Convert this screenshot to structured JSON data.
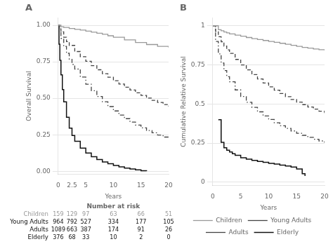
{
  "chart_data": [
    {
      "type": "step",
      "title": "A",
      "xlabel": "Years",
      "ylabel": "Overall Survival",
      "xlim": [
        0,
        20
      ],
      "ylim": [
        -0.02,
        1.05
      ],
      "xticks": [
        0,
        2.5,
        5,
        10,
        15,
        20
      ],
      "yticks": [
        {
          "value": 0,
          "label": "0.00"
        },
        0.25,
        {
          "value": 0.5,
          "label": "0.50"
        },
        0.75,
        {
          "value": 1,
          "label": "1.00"
        }
      ],
      "grid": "y",
      "series": [
        {
          "name": "Children",
          "color": "#999999",
          "line_style": "solid",
          "x": [
            0,
            0.5,
            1,
            2,
            3,
            4,
            5,
            6,
            7,
            8,
            9,
            10,
            12,
            14,
            16,
            18,
            20
          ],
          "values": [
            1.0,
            0.99,
            0.985,
            0.978,
            0.972,
            0.967,
            0.96,
            0.953,
            0.945,
            0.938,
            0.928,
            0.918,
            0.9,
            0.882,
            0.868,
            0.855,
            0.848
          ]
        },
        {
          "name": "Young Adults",
          "color": "#444444",
          "line_style": "dashed",
          "x": [
            0,
            0.25,
            0.5,
            1,
            1.5,
            2,
            3,
            4,
            5,
            6,
            7,
            8,
            9,
            10,
            11,
            12,
            13,
            14,
            15,
            16,
            17,
            18,
            19,
            20
          ],
          "values": [
            1.0,
            0.975,
            0.955,
            0.918,
            0.888,
            0.862,
            0.82,
            0.785,
            0.753,
            0.723,
            0.695,
            0.668,
            0.644,
            0.62,
            0.597,
            0.576,
            0.556,
            0.537,
            0.519,
            0.501,
            0.486,
            0.471,
            0.457,
            0.444
          ]
        },
        {
          "name": "Adults",
          "color": "#444444",
          "line_style": "dashdot",
          "x": [
            0,
            0.2,
            0.5,
            1,
            1.5,
            2,
            2.5,
            3,
            4,
            5,
            6,
            7,
            8,
            9,
            10,
            11,
            12,
            13,
            14,
            15,
            16,
            17,
            18,
            19,
            20
          ],
          "values": [
            1.0,
            0.96,
            0.91,
            0.855,
            0.808,
            0.767,
            0.731,
            0.7,
            0.645,
            0.596,
            0.552,
            0.512,
            0.476,
            0.443,
            0.413,
            0.385,
            0.36,
            0.337,
            0.316,
            0.297,
            0.279,
            0.263,
            0.248,
            0.234,
            0.221
          ]
        },
        {
          "name": "Elderly",
          "color": "#111111",
          "line_style": "solid",
          "x": [
            0,
            0.15,
            0.3,
            0.5,
            0.75,
            1.0,
            1.5,
            2,
            2.5,
            3,
            4,
            5,
            6,
            7,
            8,
            9,
            10,
            11,
            12,
            13,
            14,
            15,
            16
          ],
          "values": [
            1.0,
            0.87,
            0.76,
            0.66,
            0.56,
            0.475,
            0.37,
            0.295,
            0.245,
            0.205,
            0.158,
            0.125,
            0.1,
            0.08,
            0.064,
            0.051,
            0.04,
            0.03,
            0.022,
            0.015,
            0.009,
            0.004,
            0.001
          ]
        }
      ],
      "risk_table": {
        "title": "Number at risk",
        "x": [
          0,
          2.5,
          5,
          10,
          15,
          20
        ],
        "rows": [
          {
            "name": "Children",
            "color": "#999999",
            "values": [
              159,
              129,
              97,
              63,
              66,
              51
            ]
          },
          {
            "name": "Young Adults",
            "color": "#111111",
            "values": [
              964,
              792,
              527,
              334,
              177,
              105
            ]
          },
          {
            "name": "Adults",
            "color": "#111111",
            "values": [
              1089,
              663,
              387,
              174,
              91,
              26
            ]
          },
          {
            "name": "Elderly",
            "color": "#111111",
            "values": [
              376,
              68,
              33,
              10,
              2,
              0
            ]
          }
        ]
      }
    },
    {
      "type": "step",
      "title": "B",
      "xlabel": "Years",
      "ylabel": "Cumulative Relative Survival",
      "xlim": [
        0,
        20
      ],
      "ylim": [
        -0.02,
        1.05
      ],
      "xticks": [
        0,
        5,
        10,
        15,
        20
      ],
      "yticks": [
        0,
        0.25,
        0.5,
        0.75,
        1
      ],
      "grid": "y",
      "legend": "bottom",
      "series": [
        {
          "name": "Children",
          "color": "#999999",
          "line_style": "solid",
          "x": [
            0,
            1,
            1.5,
            2,
            2.5,
            3,
            4,
            5,
            6,
            7,
            8,
            9,
            10,
            11,
            12,
            13,
            14,
            15,
            16,
            17,
            18,
            19,
            20
          ],
          "values": [
            1.0,
            0.975,
            0.968,
            0.96,
            0.955,
            0.948,
            0.94,
            0.933,
            0.925,
            0.918,
            0.912,
            0.906,
            0.9,
            0.894,
            0.888,
            0.882,
            0.875,
            0.868,
            0.862,
            0.857,
            0.852,
            0.847,
            0.843
          ]
        },
        {
          "name": "Young Adults",
          "color": "#444444",
          "line_style": "dashed",
          "x": [
            0,
            0.5,
            1,
            1.5,
            2,
            2.5,
            3,
            4,
            5,
            6,
            7,
            8,
            9,
            10,
            11,
            12,
            13,
            14,
            15,
            16,
            17,
            18,
            19,
            20
          ],
          "values": [
            1.0,
            0.965,
            0.93,
            0.898,
            0.87,
            0.846,
            0.824,
            0.785,
            0.75,
            0.718,
            0.688,
            0.66,
            0.634,
            0.61,
            0.588,
            0.567,
            0.547,
            0.529,
            0.512,
            0.496,
            0.481,
            0.467,
            0.454,
            0.442
          ]
        },
        {
          "name": "Adults",
          "color": "#444444",
          "line_style": "dashdot",
          "x": [
            0,
            0.5,
            1,
            1.5,
            2,
            2.5,
            3,
            4,
            5,
            6,
            7,
            8,
            9,
            10,
            11,
            12,
            13,
            14,
            15,
            16,
            17,
            18,
            19,
            20
          ],
          "values": [
            1.0,
            0.9,
            0.82,
            0.762,
            0.714,
            0.675,
            0.642,
            0.59,
            0.548,
            0.511,
            0.479,
            0.45,
            0.424,
            0.401,
            0.38,
            0.361,
            0.344,
            0.328,
            0.313,
            0.3,
            0.287,
            0.275,
            0.264,
            0.253
          ]
        },
        {
          "name": "Elderly",
          "color": "#111111",
          "line_style": "solid",
          "x": [
            1,
            1.5,
            2,
            2.5,
            3,
            3.5,
            4,
            5,
            6,
            7,
            8,
            9,
            10,
            11,
            12,
            13,
            14,
            15,
            16,
            16.5
          ],
          "values": [
            0.4,
            0.255,
            0.22,
            0.205,
            0.193,
            0.182,
            0.172,
            0.157,
            0.148,
            0.14,
            0.133,
            0.127,
            0.121,
            0.116,
            0.11,
            0.104,
            0.097,
            0.085,
            0.055,
            0.04
          ]
        }
      ]
    }
  ]
}
